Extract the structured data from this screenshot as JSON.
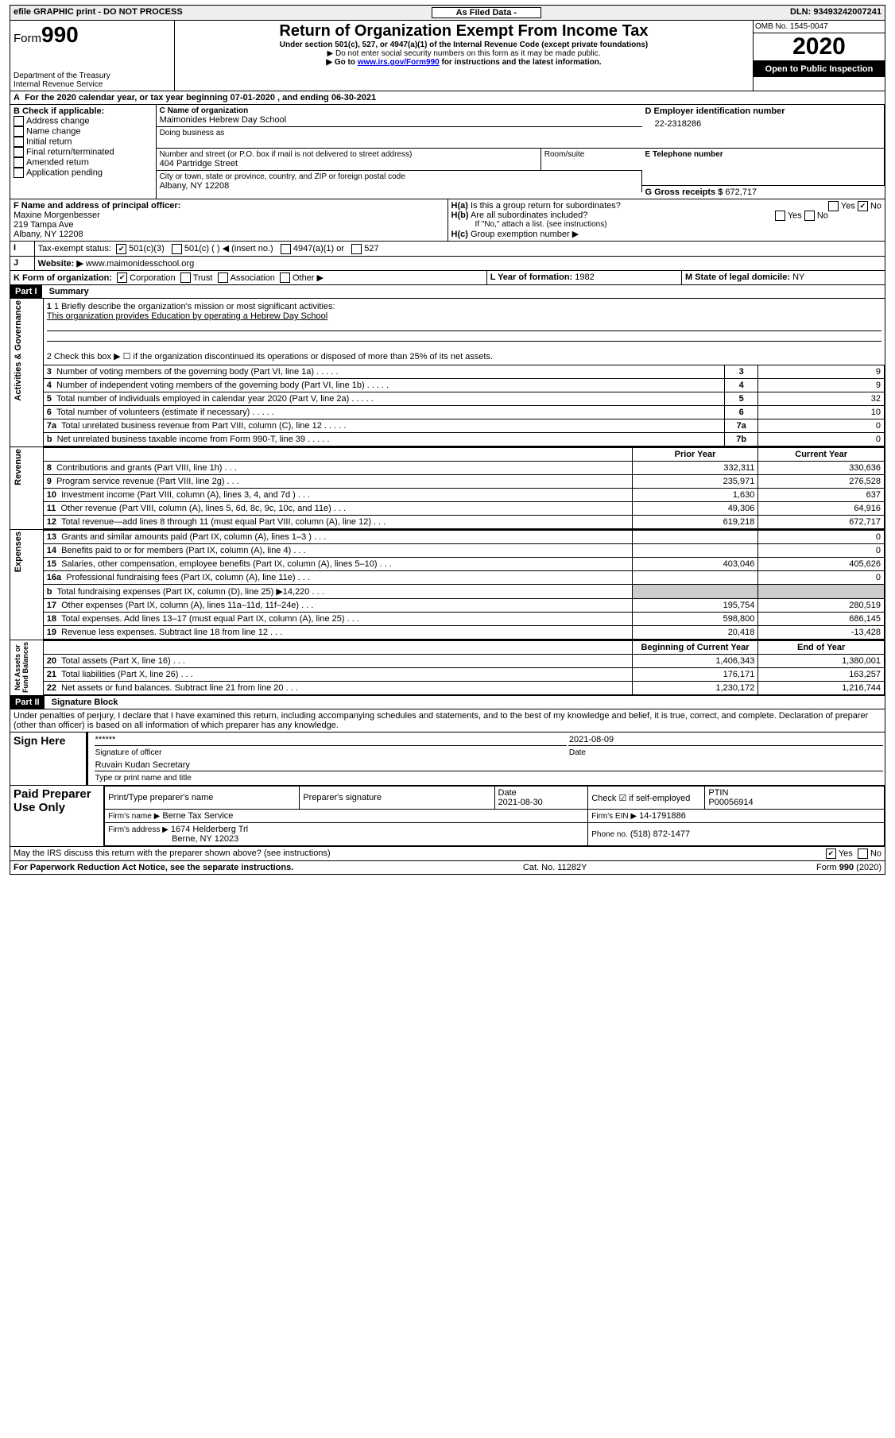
{
  "top_strip": {
    "left": "efile GRAPHIC print - DO NOT PROCESS",
    "mid": "As Filed Data -",
    "right": "DLN: 93493242007241"
  },
  "header": {
    "form_prefix": "Form",
    "form_no": "990",
    "title": "Return of Organization Exempt From Income Tax",
    "subtitle": "Under section 501(c), 527, or 4947(a)(1) of the Internal Revenue Code (except private foundations)",
    "note1": "▶ Do not enter social security numbers on this form as it may be made public.",
    "note2_pre": "▶ Go to ",
    "note2_link": "www.irs.gov/Form990",
    "note2_post": " for instructions and the latest information.",
    "dept": "Department of the Treasury\nInternal Revenue Service",
    "omb": "OMB No. 1545-0047",
    "year": "2020",
    "open": "Open to Public Inspection"
  },
  "A": {
    "text": "For the 2020 calendar year, or tax year beginning 07-01-2020    , and ending 06-30-2021"
  },
  "B": {
    "label": "B Check if applicable:",
    "items": [
      "Address change",
      "Name change",
      "Initial return",
      "Final return/terminated",
      "Amended return",
      "Application pending"
    ]
  },
  "C": {
    "name_label": "C Name of organization",
    "name": "Maimonides Hebrew Day School",
    "dba_label": "Doing business as",
    "dba": "",
    "street_label": "Number and street (or P.O. box if mail is not delivered to street address)",
    "room_label": "Room/suite",
    "street": "404 Partridge Street",
    "city_label": "City or town, state or province, country, and ZIP or foreign postal code",
    "city": "Albany, NY  12208"
  },
  "D": {
    "label": "D Employer identification number",
    "value": "22-2318286"
  },
  "E": {
    "label": "E Telephone number",
    "value": ""
  },
  "G": {
    "label": "G Gross receipts $",
    "value": "672,717"
  },
  "F": {
    "label": "F  Name and address of principal officer:",
    "name": "Maxine Morgenbesser",
    "addr1": "219 Tampa Ave",
    "addr2": "Albany, NY  12208"
  },
  "H": {
    "a": "Is this a group return for subordinates?",
    "a_yes": "Yes",
    "a_no": "No",
    "b": "Are all subordinates included?",
    "b_yes": "Yes",
    "b_no": "No",
    "b_note": "If \"No,\" attach a list. (see instructions)",
    "c": "Group exemption number ▶"
  },
  "I": {
    "label": "Tax-exempt status:",
    "c3": "501(c)(3)",
    "c": "501(c) (  ) ◀ (insert no.)",
    "a1": "4947(a)(1) or",
    "527": "527"
  },
  "J": {
    "label": "Website: ▶",
    "value": "www.maimonidesschool.org"
  },
  "K": {
    "label": "K Form of organization:",
    "corp": "Corporation",
    "trust": "Trust",
    "assoc": "Association",
    "other": "Other ▶"
  },
  "L": {
    "label": "L Year of formation:",
    "value": "1982"
  },
  "M": {
    "label": "M State of legal domicile:",
    "value": "NY"
  },
  "partI": {
    "label": "Part I",
    "title": "Summary"
  },
  "summary1": {
    "label": "1 Briefly describe the organization's mission or most significant activities:",
    "text": "This organization provides Education by operating a Hebrew Day School"
  },
  "summary2": "2  Check this box ▶ ☐ if the organization discontinued its operations or disposed of more than 25% of its net assets.",
  "gov_rows": [
    {
      "n": "3",
      "label": "Number of voting members of the governing body (Part VI, line 1a)",
      "val": "9"
    },
    {
      "n": "4",
      "label": "Number of independent voting members of the governing body (Part VI, line 1b)",
      "val": "9"
    },
    {
      "n": "5",
      "label": "Total number of individuals employed in calendar year 2020 (Part V, line 2a)",
      "val": "32"
    },
    {
      "n": "6",
      "label": "Total number of volunteers (estimate if necessary)",
      "val": "10"
    },
    {
      "n": "7a",
      "label": "Total unrelated business revenue from Part VIII, column (C), line 12",
      "val": "0"
    },
    {
      "n": "b",
      "label": "Net unrelated business taxable income from Form 990-T, line 39",
      "nalt": "7b",
      "val": "0"
    }
  ],
  "col_hdr": {
    "prior": "Prior Year",
    "current": "Current Year"
  },
  "revenue_rows": [
    {
      "n": "8",
      "label": "Contributions and grants (Part VIII, line 1h)",
      "p": "332,311",
      "c": "330,636"
    },
    {
      "n": "9",
      "label": "Program service revenue (Part VIII, line 2g)",
      "p": "235,971",
      "c": "276,528"
    },
    {
      "n": "10",
      "label": "Investment income (Part VIII, column (A), lines 3, 4, and 7d )",
      "p": "1,630",
      "c": "637"
    },
    {
      "n": "11",
      "label": "Other revenue (Part VIII, column (A), lines 5, 6d, 8c, 9c, 10c, and 11e)",
      "p": "49,306",
      "c": "64,916"
    },
    {
      "n": "12",
      "label": "Total revenue—add lines 8 through 11 (must equal Part VIII, column (A), line 12)",
      "p": "619,218",
      "c": "672,717"
    }
  ],
  "expense_rows": [
    {
      "n": "13",
      "label": "Grants and similar amounts paid (Part IX, column (A), lines 1–3 )",
      "p": "",
      "c": "0"
    },
    {
      "n": "14",
      "label": "Benefits paid to or for members (Part IX, column (A), line 4)",
      "p": "",
      "c": "0"
    },
    {
      "n": "15",
      "label": "Salaries, other compensation, employee benefits (Part IX, column (A), lines 5–10)",
      "p": "403,046",
      "c": "405,626"
    },
    {
      "n": "16a",
      "label": "Professional fundraising fees (Part IX, column (A), line 11e)",
      "p": "",
      "c": "0"
    },
    {
      "n": "b",
      "label": "Total fundraising expenses (Part IX, column (D), line 25) ▶14,220",
      "p": "—",
      "c": "—"
    },
    {
      "n": "17",
      "label": "Other expenses (Part IX, column (A), lines 11a–11d, 11f–24e)",
      "p": "195,754",
      "c": "280,519"
    },
    {
      "n": "18",
      "label": "Total expenses. Add lines 13–17 (must equal Part IX, column (A), line 25)",
      "p": "598,800",
      "c": "686,145"
    },
    {
      "n": "19",
      "label": "Revenue less expenses. Subtract line 18 from line 12",
      "p": "20,418",
      "c": "-13,428"
    }
  ],
  "na_hdr": {
    "beg": "Beginning of Current Year",
    "end": "End of Year"
  },
  "na_rows": [
    {
      "n": "20",
      "label": "Total assets (Part X, line 16)",
      "p": "1,406,343",
      "c": "1,380,001"
    },
    {
      "n": "21",
      "label": "Total liabilities (Part X, line 26)",
      "p": "176,171",
      "c": "163,257"
    },
    {
      "n": "22",
      "label": "Net assets or fund balances. Subtract line 21 from line 20",
      "p": "1,230,172",
      "c": "1,216,744"
    }
  ],
  "partII": {
    "label": "Part II",
    "title": "Signature Block"
  },
  "perjury": "Under penalties of perjury, I declare that I have examined this return, including accompanying schedules and statements, and to the best of my knowledge and belief, it is true, correct, and complete. Declaration of preparer (other than officer) is based on all information of which preparer has any knowledge.",
  "sign": {
    "left": "Sign Here",
    "sig_mask": "******",
    "sig_label": "Signature of officer",
    "date": "2021-08-09",
    "date_label": "Date",
    "name": "Ruvain Kudan Secretary",
    "name_label": "Type or print name and title"
  },
  "paid": {
    "left": "Paid Preparer Use Only",
    "h1": "Print/Type preparer's name",
    "h2": "Preparer's signature",
    "h3": "Date",
    "h3v": "2021-08-30",
    "h4": "Check ☑ if self-employed",
    "h5": "PTIN",
    "h5v": "P00056914",
    "firm_label": "Firm's name   ▶",
    "firm": "Berne Tax Service",
    "ein_label": "Firm's EIN ▶",
    "ein": "14-1791886",
    "addr_label": "Firm's address ▶",
    "addr1": "1674 Helderberg Trl",
    "addr2": "Berne, NY  12023",
    "phone_label": "Phone no.",
    "phone": "(518) 872-1477"
  },
  "discuss": {
    "q": "May the IRS discuss this return with the preparer shown above? (see instructions)",
    "yes": "Yes",
    "no": "No"
  },
  "footer": {
    "left": "For Paperwork Reduction Act Notice, see the separate instructions.",
    "mid": "Cat. No. 11282Y",
    "right": "Form 990 (2020)"
  },
  "side_labels": {
    "gov": "Activities & Governance",
    "rev": "Revenue",
    "exp": "Expenses",
    "na": "Net Assets or\nFund Balances"
  }
}
